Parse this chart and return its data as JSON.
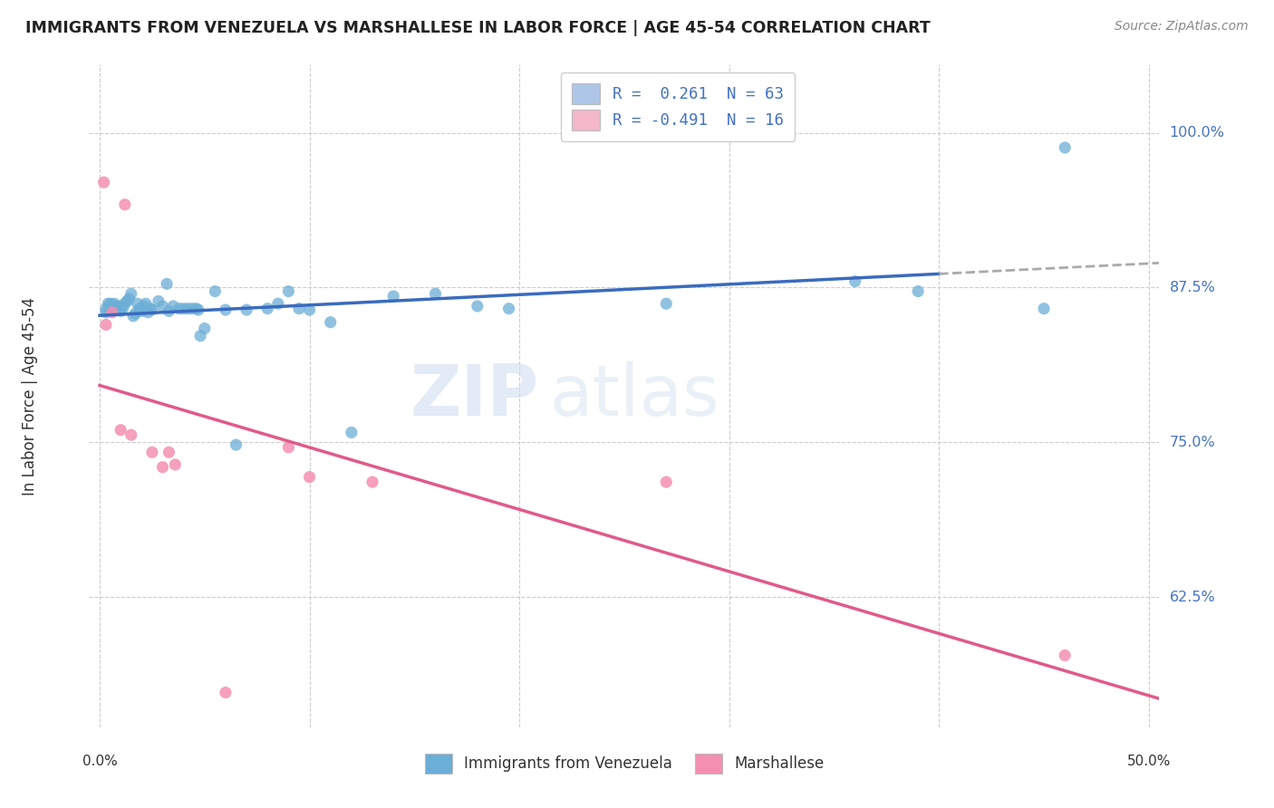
{
  "title": "IMMIGRANTS FROM VENEZUELA VS MARSHALLESE IN LABOR FORCE | AGE 45-54 CORRELATION CHART",
  "source": "Source: ZipAtlas.com",
  "ylabel": "In Labor Force | Age 45-54",
  "y_ticks": [
    0.625,
    0.75,
    0.875,
    1.0
  ],
  "y_tick_labels": [
    "62.5%",
    "75.0%",
    "87.5%",
    "100.0%"
  ],
  "x_ticks": [
    0.0,
    0.1,
    0.2,
    0.3,
    0.4,
    0.5
  ],
  "x_tick_labels": [
    "0.0%",
    "",
    "",
    "",
    "",
    "50.0%"
  ],
  "xlim": [
    -0.005,
    0.505
  ],
  "ylim": [
    0.52,
    1.055
  ],
  "legend_entries": [
    {
      "label": "R =  0.261  N = 63",
      "color": "#aec6e8"
    },
    {
      "label": "R = -0.491  N = 16",
      "color": "#f4b8c8"
    }
  ],
  "watermark_zip": "ZIP",
  "watermark_atlas": "atlas",
  "venezuela_color": "#6baed6",
  "marshallese_color": "#f48fb1",
  "line_venezuela_color": "#3a6bbf",
  "line_marshallese_color": "#e05a8a",
  "venezuela_points": [
    [
      0.003,
      0.855
    ],
    [
      0.003,
      0.858
    ],
    [
      0.004,
      0.862
    ],
    [
      0.005,
      0.862
    ],
    [
      0.005,
      0.858
    ],
    [
      0.006,
      0.86
    ],
    [
      0.006,
      0.856
    ],
    [
      0.007,
      0.856
    ],
    [
      0.007,
      0.862
    ],
    [
      0.008,
      0.858
    ],
    [
      0.008,
      0.86
    ],
    [
      0.009,
      0.857
    ],
    [
      0.009,
      0.858
    ],
    [
      0.01,
      0.856
    ],
    [
      0.01,
      0.86
    ],
    [
      0.011,
      0.858
    ],
    [
      0.012,
      0.862
    ],
    [
      0.013,
      0.864
    ],
    [
      0.014,
      0.866
    ],
    [
      0.015,
      0.87
    ],
    [
      0.016,
      0.852
    ],
    [
      0.017,
      0.854
    ],
    [
      0.018,
      0.862
    ],
    [
      0.019,
      0.858
    ],
    [
      0.02,
      0.856
    ],
    [
      0.021,
      0.86
    ],
    [
      0.022,
      0.862
    ],
    [
      0.023,
      0.855
    ],
    [
      0.024,
      0.858
    ],
    [
      0.025,
      0.857
    ],
    [
      0.028,
      0.864
    ],
    [
      0.03,
      0.86
    ],
    [
      0.032,
      0.878
    ],
    [
      0.033,
      0.856
    ],
    [
      0.035,
      0.86
    ],
    [
      0.038,
      0.858
    ],
    [
      0.04,
      0.858
    ],
    [
      0.042,
      0.858
    ],
    [
      0.044,
      0.858
    ],
    [
      0.046,
      0.858
    ],
    [
      0.047,
      0.857
    ],
    [
      0.048,
      0.836
    ],
    [
      0.05,
      0.842
    ],
    [
      0.055,
      0.872
    ],
    [
      0.06,
      0.857
    ],
    [
      0.065,
      0.748
    ],
    [
      0.07,
      0.857
    ],
    [
      0.08,
      0.858
    ],
    [
      0.085,
      0.862
    ],
    [
      0.09,
      0.872
    ],
    [
      0.095,
      0.858
    ],
    [
      0.1,
      0.857
    ],
    [
      0.11,
      0.847
    ],
    [
      0.12,
      0.758
    ],
    [
      0.14,
      0.868
    ],
    [
      0.16,
      0.87
    ],
    [
      0.18,
      0.86
    ],
    [
      0.195,
      0.858
    ],
    [
      0.27,
      0.862
    ],
    [
      0.36,
      0.88
    ],
    [
      0.39,
      0.872
    ],
    [
      0.45,
      0.858
    ],
    [
      0.46,
      0.988
    ]
  ],
  "marshallese_points": [
    [
      0.002,
      0.96
    ],
    [
      0.003,
      0.845
    ],
    [
      0.006,
      0.855
    ],
    [
      0.01,
      0.76
    ],
    [
      0.012,
      0.942
    ],
    [
      0.015,
      0.756
    ],
    [
      0.025,
      0.742
    ],
    [
      0.03,
      0.73
    ],
    [
      0.033,
      0.742
    ],
    [
      0.036,
      0.732
    ],
    [
      0.06,
      0.548
    ],
    [
      0.09,
      0.746
    ],
    [
      0.1,
      0.722
    ],
    [
      0.13,
      0.718
    ],
    [
      0.27,
      0.718
    ],
    [
      0.46,
      0.578
    ]
  ],
  "background_color": "#ffffff",
  "grid_color": "#cccccc",
  "grid_style": "--"
}
